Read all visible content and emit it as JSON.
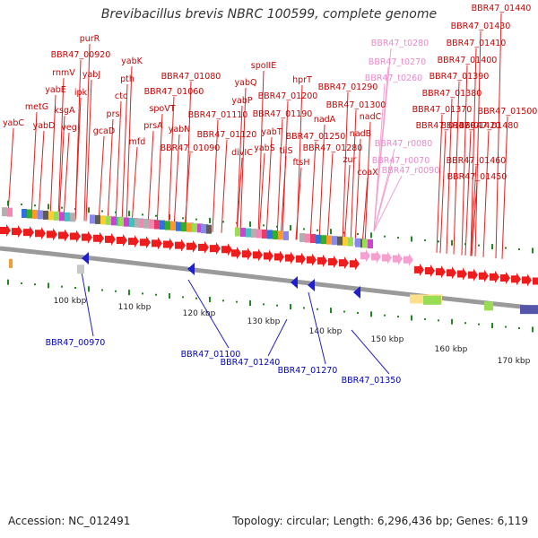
{
  "title": "Brevibacillus brevis NBRC 100599, complete genome",
  "footer": {
    "accession": "Accession: NC_012491",
    "summary": "Topology: circular; Length: 6,296,436 bp; Genes: 6,119"
  },
  "colors": {
    "forward_gene": "#ee1c1c",
    "trna_gene": "#f4a0d0",
    "reverse_gene": "#1f1fcc",
    "label_red": "#cc0000",
    "label_pink": "#ee88cc",
    "label_blue": "#0000cc",
    "tick_green": "#228822",
    "backbone": "#9a9a9a"
  },
  "scale_ticks": [
    "100 kbp",
    "110 kbp",
    "120 kbp",
    "130 kbp",
    "140 kbp",
    "150 kbp",
    "160 kbp",
    "170 kbp"
  ],
  "forward_labels": [
    "yabC",
    "metG",
    "yabD",
    "yabE",
    "rnmV",
    "ksgA",
    "veg",
    "ipk",
    "BBR47_00920",
    "yabJ",
    "purR",
    "gcaD",
    "prs",
    "ctc",
    "pth",
    "yabK",
    "mfd",
    "prsA",
    "spoVT",
    "BBR47_01060",
    "yabN",
    "BBR47_01080",
    "BBR47_01090",
    "BBR47_01110",
    "BBR47_01120",
    "divIC",
    "yabP",
    "yabQ",
    "yabS",
    "yabT",
    "spoIIE",
    "BBR47_01190",
    "BBR47_01200",
    "tilS",
    "hprT",
    "ftsH",
    "BBR47_01250",
    "nadA",
    "BBR47_01280",
    "BBR47_01290",
    "zur",
    "BBR47_01300",
    "nadB",
    "nadC",
    "coaX",
    "BBR47_01360",
    "BBR47_01370",
    "BBR47_01380",
    "BBR47_01390",
    "BBR47_01400",
    "BBR47_01410",
    "BBR47_01420",
    "BBR47_01430",
    "BBR47_01440",
    "BBR47_01450",
    "BBR47_01460",
    "BBR47_01480",
    "BBR47_01500"
  ],
  "trna_labels": [
    "BBR47_t0280",
    "BBR47_t0270",
    "BBR47_t0260",
    "BBR47_r0080",
    "BBR47_r0070",
    "BBR47_r0090"
  ],
  "reverse_labels": [
    "BBR47_00970",
    "BBR47_01100",
    "BBR47_01240",
    "BBR47_01270",
    "BBR47_01350"
  ]
}
